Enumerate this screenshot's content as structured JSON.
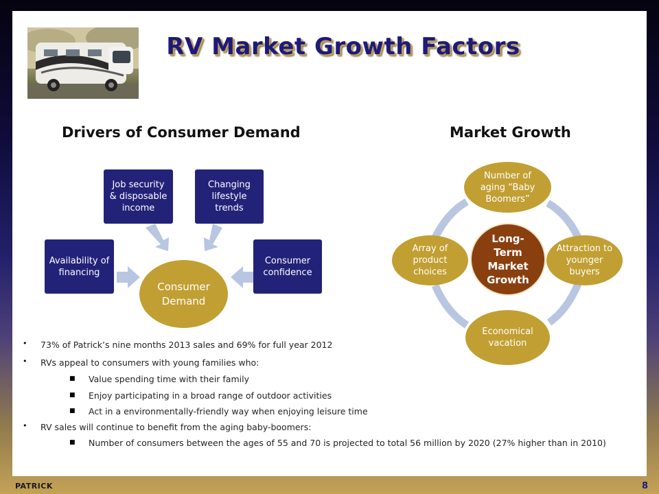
{
  "slide": {
    "title": "RV Market Growth Factors",
    "page_number": "8",
    "footer_logo": "PATRICK"
  },
  "drivers": {
    "heading": "Drivers of Consumer Demand",
    "boxes": [
      "Job security & disposable income",
      "Changing lifestyle trends",
      "Availability of financing",
      "Consumer confidence"
    ],
    "center": "Consumer Demand"
  },
  "market": {
    "heading": "Market Growth",
    "center": "Long-Term Market Growth",
    "nodes": [
      "Number of aging “Baby Boomers”",
      "Attraction to younger buyers",
      "Economical vacation",
      "Array of product choices"
    ]
  },
  "bullets": {
    "b1": "73% of Patrick’s nine months 2013 sales and 69% for full year 2012",
    "b2": "RVs appeal to consumers with young families who:",
    "b2_subs": [
      "Value spending time with their family",
      "Enjoy participating in a broad range of outdoor activities",
      "Act in a environmentally-friendly way when enjoying leisure time"
    ],
    "b3": "RV sales will continue to benefit from the aging baby-boomers:",
    "b3_subs": [
      "Number of consumers between the ages of 55 and 70 is projected to total 56 million by 2020 (27% higher than in  2010)"
    ]
  },
  "colors": {
    "navy": "#232279",
    "gold": "#c19f32",
    "rust": "#8a3f0f",
    "arrow": "#b9c6e2"
  }
}
